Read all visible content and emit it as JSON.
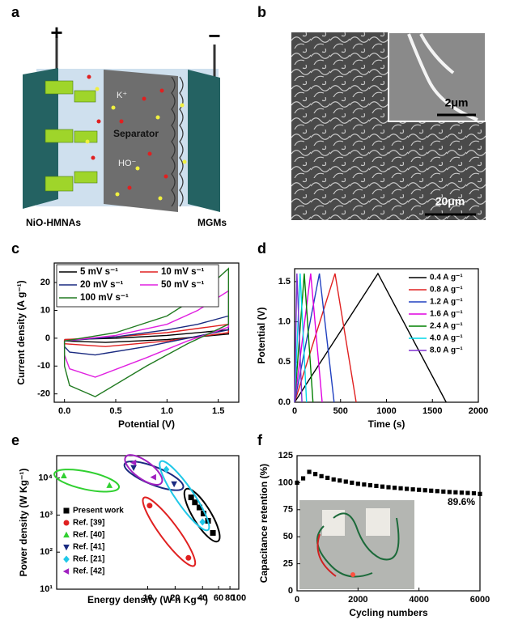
{
  "panel_labels": [
    "a",
    "b",
    "c",
    "d",
    "e",
    "f"
  ],
  "schematic": {
    "positive": "+",
    "negative": "−",
    "ions": [
      "K⁺",
      "HO⁻"
    ],
    "separator": "Separator",
    "left_electrode": "NiO-HMNAs",
    "right_electrode": "MGMs"
  },
  "sem": {
    "inset_scale": "2μm",
    "scale": "20μm"
  },
  "chart_data": [
    {
      "type": "line",
      "xlabel": "Potential (V)",
      "ylabel": "Current density (A g⁻¹)",
      "xlim": [
        -0.1,
        1.7
      ],
      "xticks": [
        {
          "value": 0,
          "label": "0.0"
        },
        0.5,
        {
          "value": 1,
          "label": "1.0"
        },
        1.5
      ],
      "ylim": [
        -23,
        27
      ],
      "yticks": [
        -20,
        -10,
        0,
        10,
        20
      ],
      "legend": "upper left",
      "series": [
        {
          "name": "5 mV s⁻¹",
          "color": "#000000",
          "x": [
            0,
            0.5,
            1.0,
            1.6,
            1.6,
            1.0,
            0.4,
            0,
            0
          ],
          "values": [
            -0.5,
            0,
            1,
            3,
            1.5,
            -0.5,
            -1.5,
            -1,
            -0.5
          ]
        },
        {
          "name": "10 mV s⁻¹",
          "color": "#e02020",
          "x": [
            0,
            0.5,
            1.0,
            1.6,
            1.6,
            1.0,
            0.4,
            0,
            0
          ],
          "values": [
            -0.5,
            0.5,
            2,
            5,
            2,
            -1,
            -3,
            -2,
            -0.5
          ]
        },
        {
          "name": "20 mV s⁻¹",
          "color": "#1a2a80",
          "x": [
            0,
            0.5,
            1.0,
            1.3,
            1.6,
            1.6,
            1.2,
            0.8,
            0.3,
            0.05,
            0,
            0
          ],
          "values": [
            -1,
            0.5,
            3,
            5,
            8,
            3,
            0,
            -3,
            -6,
            -5,
            -3,
            -1
          ]
        },
        {
          "name": "50 mV s⁻¹",
          "color": "#e020e0",
          "x": [
            0,
            0.5,
            1.0,
            1.3,
            1.6,
            1.6,
            1.2,
            0.8,
            0.3,
            0.05,
            0,
            0
          ],
          "values": [
            -1,
            1,
            5,
            10,
            17,
            4,
            -1,
            -7,
            -14,
            -11,
            -6,
            -1
          ]
        },
        {
          "name": "100 mV s⁻¹",
          "color": "#207a20",
          "x": [
            0,
            0.5,
            1.0,
            1.3,
            1.6,
            1.6,
            1.2,
            0.8,
            0.3,
            0.05,
            0,
            0
          ],
          "values": [
            -1,
            2,
            8,
            15,
            25,
            5,
            -2,
            -10,
            -21,
            -17,
            -10,
            -1
          ]
        }
      ]
    },
    {
      "type": "line",
      "xlabel": "Time (s)",
      "ylabel": "Potential (V)",
      "xlim": [
        0,
        2000
      ],
      "xticks": [
        0,
        500,
        1000,
        1500,
        2000
      ],
      "ylim": [
        0,
        1.66
      ],
      "yticks": [
        {
          "value": 0,
          "label": "0.0"
        },
        0.5,
        {
          "value": 1,
          "label": "1.0"
        },
        1.5
      ],
      "legend": "upper right",
      "series": [
        {
          "name": "0.4 A g⁻¹",
          "color": "#000000",
          "x": [
            0,
            907,
            1650
          ],
          "values": [
            0,
            1.6,
            0
          ]
        },
        {
          "name": "0.8 A g⁻¹",
          "color": "#e02020",
          "x": [
            0,
            440,
            670
          ],
          "values": [
            0,
            1.6,
            0
          ]
        },
        {
          "name": "1.2 A g⁻¹",
          "color": "#2040c0",
          "x": [
            0,
            270,
            430
          ],
          "values": [
            0,
            1.6,
            0
          ]
        },
        {
          "name": "1.6 A g⁻¹",
          "color": "#e000e0",
          "x": [
            0,
            175,
            300
          ],
          "values": [
            0,
            1.6,
            0
          ]
        },
        {
          "name": "2.4 A g⁻¹",
          "color": "#008000",
          "x": [
            0,
            105,
            200
          ],
          "values": [
            0,
            1.6,
            0
          ]
        },
        {
          "name": "4.0 A g⁻¹",
          "color": "#00d8e8",
          "x": [
            0,
            60,
            130
          ],
          "values": [
            0,
            1.6,
            0
          ]
        },
        {
          "name": "8.0 A g⁻¹",
          "color": "#8030d0",
          "x": [
            0,
            25,
            80
          ],
          "values": [
            0,
            1.6,
            0
          ]
        }
      ]
    },
    {
      "type": "scatter",
      "xlabel": "Energy density (W h Kg⁻¹)",
      "ylabel": "Power density (W Kg⁻¹)",
      "xscale": "log",
      "yscale": "log",
      "xlim": [
        1,
        100
      ],
      "xticks": [
        10,
        20,
        40,
        60,
        80,
        100
      ],
      "ylim": [
        10,
        40000
      ],
      "yticks": [
        {
          "value": 10,
          "label": "10¹"
        },
        {
          "value": 100,
          "label": "10²"
        },
        {
          "value": 1000,
          "label": "10³"
        },
        {
          "value": 10000,
          "label": "10⁴"
        }
      ],
      "legend": "lower left",
      "series": [
        {
          "name": "Present work",
          "color": "#000000",
          "marker": "square",
          "x": [
            30,
            33,
            37,
            41,
            46,
            52
          ],
          "values": [
            3000,
            2200,
            1600,
            1100,
            700,
            330
          ]
        },
        {
          "name": "Ref. [39]",
          "color": "#e02020",
          "marker": "circle",
          "x": [
            10.5,
            28
          ],
          "values": [
            1800,
            70
          ]
        },
        {
          "name": "Ref. [40]",
          "color": "#30d030",
          "marker": "triangle-up",
          "x": [
            1.2,
            3.8
          ],
          "values": [
            11500,
            6300
          ]
        },
        {
          "name": "Ref. [41]",
          "color": "#1a2a80",
          "marker": "triangle-down",
          "x": [
            7,
            19.5
          ],
          "values": [
            19000,
            6900
          ]
        },
        {
          "name": "Ref. [21]",
          "color": "#20c8e8",
          "marker": "diamond",
          "x": [
            16,
            40
          ],
          "values": [
            17000,
            650
          ]
        },
        {
          "name": "Ref. [42]",
          "color": "#a020c0",
          "marker": "triangle-left",
          "x": [
            7,
            11.6
          ],
          "values": [
            26000,
            10500
          ]
        }
      ]
    },
    {
      "type": "scatter",
      "xlabel": "Cycling numbers",
      "ylabel": "Capacitance retention (%)",
      "xlim": [
        0,
        6000
      ],
      "xticks": [
        0,
        2000,
        4000,
        6000
      ],
      "ylim": [
        0,
        125
      ],
      "yticks": [
        0,
        25,
        50,
        75,
        100,
        125
      ],
      "annotation": "89.6%",
      "series": [
        {
          "color": "#000000",
          "marker": "square",
          "x": [
            0,
            200,
            400,
            600,
            800,
            1000,
            1200,
            1400,
            1600,
            1800,
            2000,
            2200,
            2400,
            2600,
            2800,
            3000,
            3200,
            3400,
            3600,
            3800,
            4000,
            4200,
            4400,
            4600,
            4800,
            5000,
            5200,
            5400,
            5600,
            5800,
            6000
          ],
          "values": [
            100,
            104,
            110,
            108,
            106,
            104.5,
            103,
            102,
            101,
            100,
            99,
            98.3,
            97.6,
            97,
            96.4,
            95.8,
            95.3,
            94.8,
            94.3,
            93.8,
            93.4,
            93,
            92.6,
            92.2,
            91.8,
            91.4,
            91.1,
            90.8,
            90.5,
            90.2,
            89.6
          ]
        }
      ]
    }
  ]
}
